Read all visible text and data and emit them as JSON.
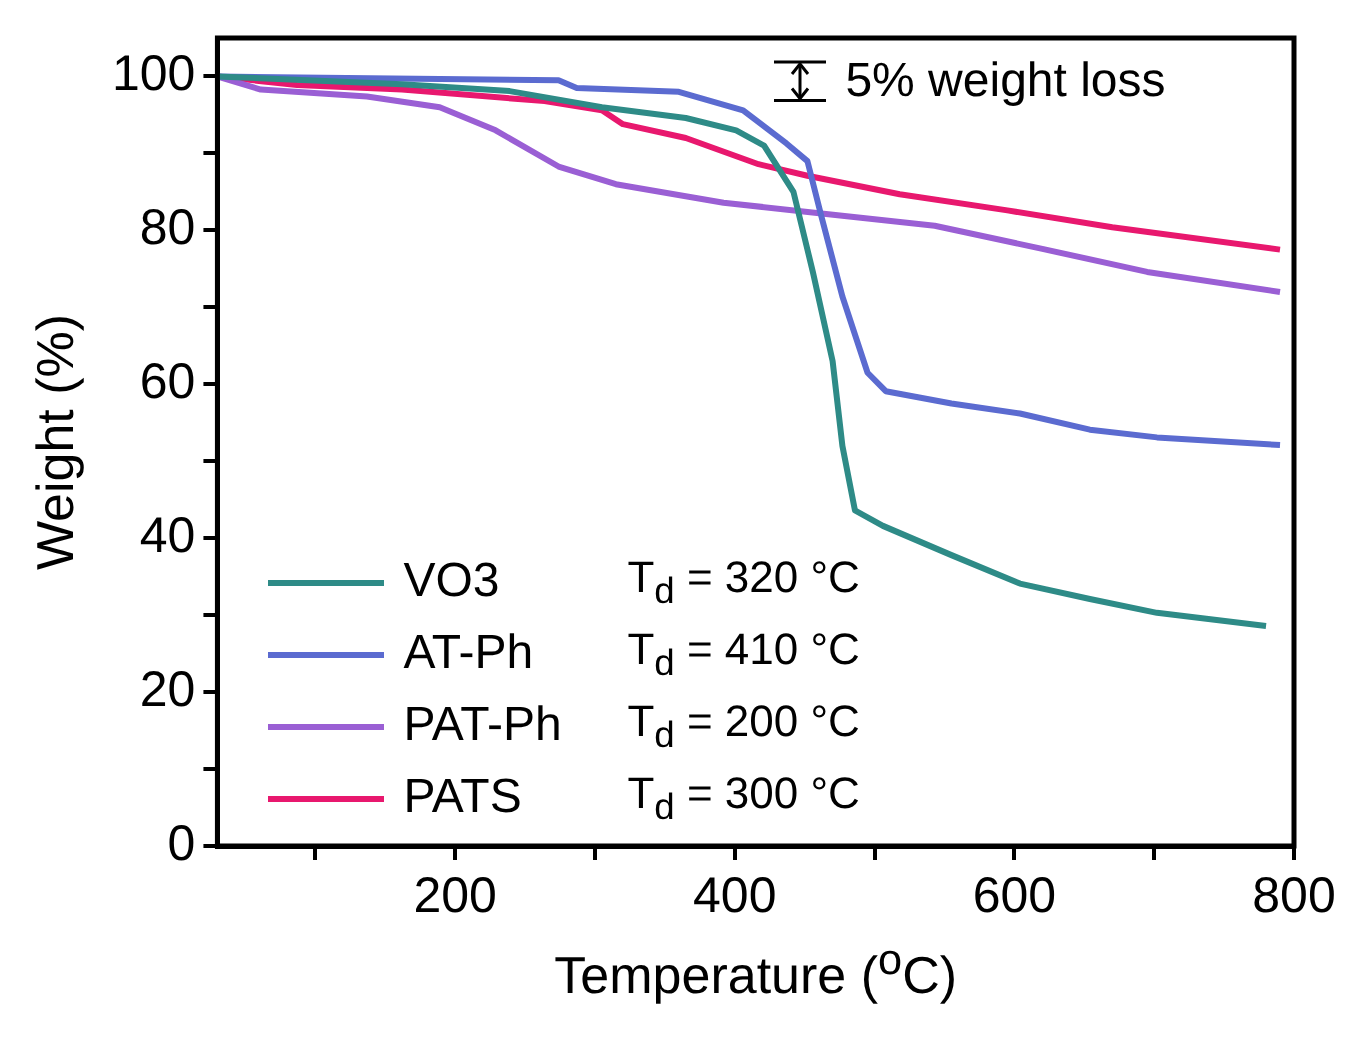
{
  "chart_data": {
    "type": "line",
    "xlabel": "Temperature ($^{o}$C)",
    "ylabel": "Weight (%)",
    "xlim": [
      30,
      800
    ],
    "xticks": [
      {
        "value": 100,
        "label": null
      },
      200,
      {
        "value": 300,
        "label": null
      },
      400,
      {
        "value": 500,
        "label": null
      },
      600,
      {
        "value": 700,
        "label": null
      },
      800
    ],
    "ylim": [
      0,
      105
    ],
    "yticks": [
      0,
      {
        "value": 10,
        "label": null
      },
      20,
      {
        "value": 30,
        "label": null
      },
      40,
      {
        "value": 50,
        "label": null
      },
      60,
      {
        "value": 70,
        "label": null
      },
      80,
      {
        "value": 90,
        "label": null
      },
      100
    ],
    "grid": false,
    "legend": "bottom left",
    "marker": "none",
    "line_style": "solid",
    "annotations": [
      "5% weight loss",
      "T$_{d}$ = 320 °C",
      "T$_{d}$ = 410 °C",
      "T$_{d}$ = 200 °C",
      "T$_{d}$ = 300 °C"
    ],
    "series": [
      {
        "name": "VO3",
        "color": "#2e8b87",
        "x": [
          30,
          162,
          239,
          305,
          365,
          401,
          421,
          442,
          456,
          470,
          477,
          486,
          506,
          555,
          604,
          654,
          702,
          780
        ],
        "values": [
          100,
          99,
          98.1,
          96,
          94.6,
          93,
          91,
          85,
          74.5,
          63,
          52,
          43.6,
          41.6,
          37.8,
          34.1,
          32.1,
          30.3,
          28.6
        ]
      },
      {
        "name": "AT-Ph",
        "color": "#5b6bd0",
        "x": [
          30,
          274,
          287,
          360,
          406,
          437,
          452,
          462,
          477,
          495,
          508,
          555,
          604,
          654,
          702,
          790
        ],
        "values": [
          100,
          99.5,
          98.5,
          98,
          95.6,
          91.3,
          89,
          81.8,
          71.4,
          61.5,
          59.1,
          57.5,
          56.2,
          54.1,
          53.1,
          52.1
        ]
      },
      {
        "name": "PAT-Ph",
        "color": "#9a5fd4",
        "x": [
          30,
          61,
          137,
          189,
          229,
          274,
          315,
          392,
          467,
          543,
          620,
          695,
          790
        ],
        "values": [
          100,
          98.3,
          97.4,
          96,
          93,
          88.3,
          86,
          83.6,
          82.1,
          80.6,
          77.6,
          74.6,
          72
        ]
      },
      {
        "name": "PATS",
        "color": "#e8186e",
        "x": [
          30,
          87,
          162,
          264,
          305,
          320,
          365,
          417,
          452,
          518,
          595,
          670,
          790
        ],
        "values": [
          100,
          98.9,
          98.3,
          96.8,
          95.6,
          93.8,
          92,
          88.6,
          87.1,
          84.7,
          82.6,
          80.4,
          77.5
        ]
      }
    ]
  }
}
